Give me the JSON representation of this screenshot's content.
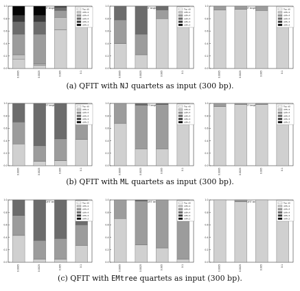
{
  "style": {
    "stack_colors": [
      "#d0d0d0",
      "#c2c2c2",
      "#9c9c9c",
      "#6c6c6c",
      "#3a3a3a",
      "#050505"
    ],
    "legend_colors": [
      "#ffffff",
      "#c2c2c2",
      "#9c9c9c",
      "#6c6c6c",
      "#3a3a3a",
      "#050505"
    ],
    "axis_color": "#333333"
  },
  "legend_labels": [
    "Top d0",
    "diff<4",
    "diff<4",
    "diff<4",
    "diff<3",
    "diff<2"
  ],
  "y_ticks": [
    "0.0",
    "0.2",
    "0.4",
    "0.6",
    "0.8",
    "1.0"
  ],
  "x_ticks": [
    "0.0005",
    "0.0025",
    "0.005",
    "0.1"
  ],
  "captions": [
    {
      "pre": "(a) QFIT with ",
      "code": "NJ",
      "post": " quartets as input (300 bp)."
    },
    {
      "pre": "(b) QFIT with ",
      "code": "ML",
      "post": " quartets as input (300 bp)."
    },
    {
      "pre": "(c) QFIT with ",
      "code": "EMtree",
      "post": " quartets as input (300 bp)."
    }
  ],
  "chart_data": [
    {
      "type": "bar",
      "stacked": true,
      "title": "NJ QFIT length 300",
      "categories": [
        "0.0005",
        "0.0025",
        "0.005",
        "0.1"
      ],
      "ylim": [
        0,
        1
      ],
      "series": [
        {
          "name": "Top d0",
          "values": [
            0.15,
            0.05,
            0.62,
            1.0
          ]
        },
        {
          "name": "diff<4",
          "values": [
            0.07,
            0.02,
            0.2,
            0.0
          ]
        },
        {
          "name": "diff<4",
          "values": [
            0.33,
            0.48,
            0.11,
            0.0
          ]
        },
        {
          "name": "diff<4",
          "values": [
            0.2,
            0.2,
            0.05,
            0.0
          ]
        },
        {
          "name": "diff<3",
          "values": [
            0.1,
            0.1,
            0.02,
            0.0
          ]
        },
        {
          "name": "diff<2",
          "values": [
            0.15,
            0.15,
            0.0,
            0.0
          ]
        }
      ]
    },
    {
      "type": "bar",
      "stacked": true,
      "title": "NJ QFIT length 300",
      "categories": [
        "0.0005",
        "0.0025",
        "0.005",
        "0.1"
      ],
      "ylim": [
        0,
        1
      ],
      "series": [
        {
          "name": "Top d0",
          "values": [
            0.4,
            0.22,
            0.8,
            0.93
          ]
        },
        {
          "name": "diff<4",
          "values": [
            0.0,
            0.0,
            0.0,
            0.0
          ]
        },
        {
          "name": "diff<4",
          "values": [
            0.38,
            0.33,
            0.14,
            0.07
          ]
        },
        {
          "name": "diff<4",
          "values": [
            0.22,
            0.45,
            0.06,
            0.0
          ]
        },
        {
          "name": "diff<3",
          "values": [
            0.0,
            0.0,
            0.0,
            0.0
          ]
        },
        {
          "name": "diff<2",
          "values": [
            0.0,
            0.0,
            0.0,
            0.0
          ]
        }
      ]
    },
    {
      "type": "bar",
      "stacked": true,
      "title": "NJ QFIT length 300",
      "categories": [
        "0.0005",
        "0.0025",
        "0.005",
        "0.1"
      ],
      "ylim": [
        0,
        1
      ],
      "series": [
        {
          "name": "Top d0",
          "values": [
            0.94,
            0.95,
            0.93,
            1.0
          ]
        },
        {
          "name": "diff<4",
          "values": [
            0.0,
            0.0,
            0.0,
            0.0
          ]
        },
        {
          "name": "diff<4",
          "values": [
            0.06,
            0.05,
            0.07,
            0.0
          ]
        },
        {
          "name": "diff<4",
          "values": [
            0.0,
            0.0,
            0.0,
            0.0
          ]
        },
        {
          "name": "diff<3",
          "values": [
            0.0,
            0.0,
            0.0,
            0.0
          ]
        },
        {
          "name": "diff<2",
          "values": [
            0.0,
            0.0,
            0.0,
            0.0
          ]
        }
      ]
    },
    {
      "type": "bar",
      "stacked": true,
      "title": "ML QFIT length 300",
      "categories": [
        "0.0005",
        "0.0025",
        "0.005",
        "0.1"
      ],
      "ylim": [
        0,
        1
      ],
      "series": [
        {
          "name": "Top d0",
          "values": [
            0.35,
            0.07,
            0.08,
            0.42
          ]
        },
        {
          "name": "diff<4",
          "values": [
            0.0,
            0.0,
            0.0,
            0.0
          ]
        },
        {
          "name": "diff<4",
          "values": [
            0.35,
            0.25,
            0.35,
            0.4
          ]
        },
        {
          "name": "diff<4",
          "values": [
            0.3,
            0.68,
            0.57,
            0.18
          ]
        },
        {
          "name": "diff<3",
          "values": [
            0.0,
            0.0,
            0.0,
            0.0
          ]
        },
        {
          "name": "diff<2",
          "values": [
            0.0,
            0.0,
            0.0,
            0.0
          ]
        }
      ]
    },
    {
      "type": "bar",
      "stacked": true,
      "title": "ML QFIT length 300",
      "categories": [
        "0.0005",
        "0.0025",
        "0.005",
        "0.1"
      ],
      "ylim": [
        0,
        1
      ],
      "series": [
        {
          "name": "Top d0",
          "values": [
            0.68,
            0.27,
            0.27,
            0.72
          ]
        },
        {
          "name": "diff<4",
          "values": [
            0.0,
            0.0,
            0.0,
            0.0
          ]
        },
        {
          "name": "diff<4",
          "values": [
            0.32,
            0.7,
            0.71,
            0.28
          ]
        },
        {
          "name": "diff<4",
          "values": [
            0.0,
            0.03,
            0.02,
            0.0
          ]
        },
        {
          "name": "diff<3",
          "values": [
            0.0,
            0.0,
            0.0,
            0.0
          ]
        },
        {
          "name": "diff<2",
          "values": [
            0.0,
            0.0,
            0.0,
            0.0
          ]
        }
      ]
    },
    {
      "type": "bar",
      "stacked": true,
      "title": "ML QFIT length 300",
      "categories": [
        "0.0005",
        "0.0025",
        "0.005",
        "0.1"
      ],
      "ylim": [
        0,
        1
      ],
      "series": [
        {
          "name": "Top d0",
          "values": [
            0.95,
            0.98,
            0.98,
            1.0
          ]
        },
        {
          "name": "diff<4",
          "values": [
            0.0,
            0.0,
            0.0,
            0.0
          ]
        },
        {
          "name": "diff<4",
          "values": [
            0.05,
            0.02,
            0.02,
            0.0
          ]
        },
        {
          "name": "diff<4",
          "values": [
            0.0,
            0.0,
            0.0,
            0.0
          ]
        },
        {
          "name": "diff<3",
          "values": [
            0.0,
            0.0,
            0.0,
            0.0
          ]
        },
        {
          "name": "diff<2",
          "values": [
            0.0,
            0.0,
            0.0,
            0.0
          ]
        }
      ]
    },
    {
      "type": "bar",
      "stacked": true,
      "title": "EMtree QFIT length 300",
      "categories": [
        "0.0005",
        "0.0025",
        "0.005",
        "0.1"
      ],
      "ylim": [
        0,
        1
      ],
      "series": [
        {
          "name": "Top d0",
          "values": [
            0.43,
            0.05,
            0.05,
            0.27
          ]
        },
        {
          "name": "diff<4",
          "values": [
            0.0,
            0.0,
            0.0,
            0.0
          ]
        },
        {
          "name": "diff<4",
          "values": [
            0.32,
            0.3,
            0.33,
            0.33
          ]
        },
        {
          "name": "diff<4",
          "values": [
            0.25,
            0.65,
            0.62,
            0.4
          ]
        },
        {
          "name": "diff<3",
          "values": [
            0.0,
            0.0,
            0.0,
            0.0
          ]
        },
        {
          "name": "diff<2",
          "values": [
            0.0,
            0.0,
            0.0,
            0.0
          ]
        }
      ]
    },
    {
      "type": "bar",
      "stacked": true,
      "title": "EMtree QFIT length 300",
      "categories": [
        "0.0005",
        "0.0025",
        "0.005",
        "0.1"
      ],
      "ylim": [
        0,
        1
      ],
      "series": [
        {
          "name": "Top d0",
          "values": [
            0.7,
            0.28,
            0.23,
            0.05
          ]
        },
        {
          "name": "diff<4",
          "values": [
            0.0,
            0.0,
            0.0,
            0.0
          ]
        },
        {
          "name": "diff<4",
          "values": [
            0.3,
            0.7,
            0.77,
            0.95
          ]
        },
        {
          "name": "diff<4",
          "values": [
            0.0,
            0.02,
            0.0,
            0.0
          ]
        },
        {
          "name": "diff<3",
          "values": [
            0.0,
            0.0,
            0.0,
            0.0
          ]
        },
        {
          "name": "diff<2",
          "values": [
            0.0,
            0.0,
            0.0,
            0.0
          ]
        }
      ]
    },
    {
      "type": "bar",
      "stacked": true,
      "title": "EMtree QFIT length 300",
      "categories": [
        "0.0005",
        "0.0025",
        "0.005",
        "0.1"
      ],
      "ylim": [
        0,
        1
      ],
      "series": [
        {
          "name": "Top d0",
          "values": [
            1.0,
            0.97,
            1.0,
            1.0
          ]
        },
        {
          "name": "diff<4",
          "values": [
            0.0,
            0.0,
            0.0,
            0.0
          ]
        },
        {
          "name": "diff<4",
          "values": [
            0.0,
            0.03,
            0.0,
            0.0
          ]
        },
        {
          "name": "diff<4",
          "values": [
            0.0,
            0.0,
            0.0,
            0.0
          ]
        },
        {
          "name": "diff<3",
          "values": [
            0.0,
            0.0,
            0.0,
            0.0
          ]
        },
        {
          "name": "diff<2",
          "values": [
            0.0,
            0.0,
            0.0,
            0.0
          ]
        }
      ]
    }
  ]
}
